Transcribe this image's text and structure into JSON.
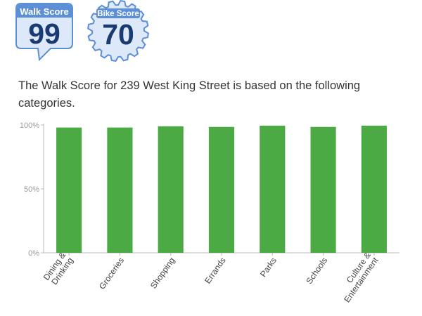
{
  "walk_score": {
    "label": "Walk Score",
    "value": "99"
  },
  "bike_score": {
    "label": "Bike Score",
    "value": "70"
  },
  "description": "The Walk Score for 239 West King Street is based on the following categories.",
  "colors": {
    "bar": "#4caa45",
    "badge_blue": "#5c8fd6",
    "badge_light": "#dde9f8",
    "badge_number": "#1a3b72",
    "axis": "#bbbbbb"
  },
  "chart_data": {
    "type": "bar",
    "title": "",
    "xlabel": "",
    "ylabel": "",
    "ylim": [
      0,
      100
    ],
    "yticks": [
      "0%",
      "50%",
      "100%"
    ],
    "categories": [
      [
        "Dining &",
        "Drinking"
      ],
      [
        "Groceries"
      ],
      [
        "Shopping"
      ],
      [
        "Errands"
      ],
      [
        "Parks"
      ],
      [
        "Schools"
      ],
      [
        "Culture &",
        "Entertainment"
      ]
    ],
    "values": [
      98,
      98,
      99,
      98.5,
      99.5,
      98.5,
      99.5
    ]
  }
}
